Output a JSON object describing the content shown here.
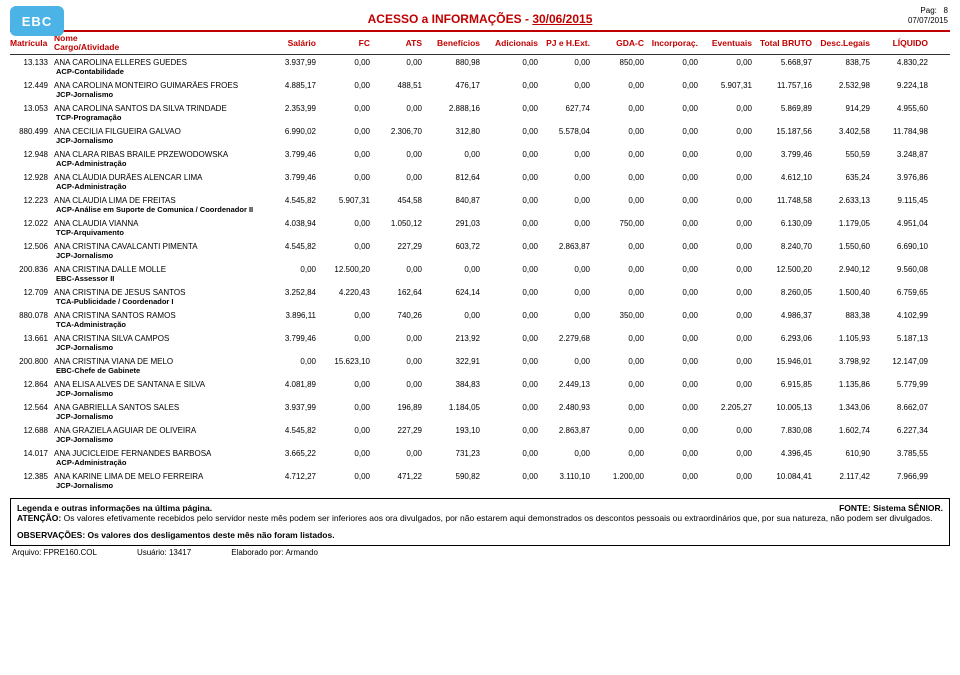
{
  "header": {
    "logo_text": "EBC",
    "title_prefix": "ACESSO a INFORMAÇÕES - ",
    "title_date": "30/06/2015",
    "pag_label": "Pag:",
    "pag_num": "8",
    "print_date": "07/07/2015"
  },
  "columns": {
    "matricula": "Matrícula",
    "nome_l1": "Nome",
    "nome_l2": "Cargo/Atividade",
    "salario": "Salário",
    "fc": "FC",
    "ats": "ATS",
    "beneficios": "Benefícios",
    "adicionais": "Adicionais",
    "pj": "PJ e H.Ext.",
    "gda": "GDA-C",
    "incorporac": "Incorporaç.",
    "eventuais": "Eventuais",
    "total_bruto": "Total BRUTO",
    "desc_legais": "Desc.Legais",
    "liquido": "LÍQUIDO"
  },
  "rows": [
    {
      "mat": "13.133",
      "nome": "ANA CAROLINA ELLERES GUEDES",
      "cargo": "ACP-Contabilidade",
      "v": [
        "3.937,99",
        "0,00",
        "0,00",
        "880,98",
        "0,00",
        "0,00",
        "850,00",
        "0,00",
        "0,00",
        "5.668,97",
        "838,75",
        "4.830,22"
      ]
    },
    {
      "mat": "12.449",
      "nome": "ANA CAROLINA MONTEIRO GUIMARÃES FROES",
      "cargo": "JCP-Jornalismo",
      "v": [
        "4.885,17",
        "0,00",
        "488,51",
        "476,17",
        "0,00",
        "0,00",
        "0,00",
        "0,00",
        "5.907,31",
        "11.757,16",
        "2.532,98",
        "9.224,18"
      ]
    },
    {
      "mat": "13.053",
      "nome": "ANA CAROLINA SANTOS DA SILVA TRINDADE",
      "cargo": "TCP-Programação",
      "v": [
        "2.353,99",
        "0,00",
        "0,00",
        "2.888,16",
        "0,00",
        "627,74",
        "0,00",
        "0,00",
        "0,00",
        "5.869,89",
        "914,29",
        "4.955,60"
      ]
    },
    {
      "mat": "880.499",
      "nome": "ANA CECILIA FILGUEIRA GALVAO",
      "cargo": "JCP-Jornalismo",
      "v": [
        "6.990,02",
        "0,00",
        "2.306,70",
        "312,80",
        "0,00",
        "5.578,04",
        "0,00",
        "0,00",
        "0,00",
        "15.187,56",
        "3.402,58",
        "11.784,98"
      ]
    },
    {
      "mat": "12.948",
      "nome": "ANA CLARA RIBAS BRAILE PRZEWODOWSKA",
      "cargo": "ACP-Administração",
      "v": [
        "3.799,46",
        "0,00",
        "0,00",
        "0,00",
        "0,00",
        "0,00",
        "0,00",
        "0,00",
        "0,00",
        "3.799,46",
        "550,59",
        "3.248,87"
      ]
    },
    {
      "mat": "12.928",
      "nome": "ANA CLÁUDIA DURÃES ALENCAR LIMA",
      "cargo": "ACP-Administração",
      "v": [
        "3.799,46",
        "0,00",
        "0,00",
        "812,64",
        "0,00",
        "0,00",
        "0,00",
        "0,00",
        "0,00",
        "4.612,10",
        "635,24",
        "3.976,86"
      ]
    },
    {
      "mat": "12.223",
      "nome": "ANA CLAUDIA LIMA DE FREITAS",
      "cargo": "ACP-Análise em Suporte de Comunica / Coordenador II",
      "v": [
        "4.545,82",
        "5.907,31",
        "454,58",
        "840,87",
        "0,00",
        "0,00",
        "0,00",
        "0,00",
        "0,00",
        "11.748,58",
        "2.633,13",
        "9.115,45"
      ]
    },
    {
      "mat": "12.022",
      "nome": "ANA CLAUDIA VIANNA",
      "cargo": "TCP-Arquivamento",
      "v": [
        "4.038,94",
        "0,00",
        "1.050,12",
        "291,03",
        "0,00",
        "0,00",
        "750,00",
        "0,00",
        "0,00",
        "6.130,09",
        "1.179,05",
        "4.951,04"
      ]
    },
    {
      "mat": "12.506",
      "nome": "ANA CRISTINA CAVALCANTI PIMENTA",
      "cargo": "JCP-Jornalismo",
      "v": [
        "4.545,82",
        "0,00",
        "227,29",
        "603,72",
        "0,00",
        "2.863,87",
        "0,00",
        "0,00",
        "0,00",
        "8.240,70",
        "1.550,60",
        "6.690,10"
      ]
    },
    {
      "mat": "200.836",
      "nome": "ANA CRISTINA DALLE MOLLE",
      "cargo": "EBC-Assessor II",
      "v": [
        "0,00",
        "12.500,20",
        "0,00",
        "0,00",
        "0,00",
        "0,00",
        "0,00",
        "0,00",
        "0,00",
        "12.500,20",
        "2.940,12",
        "9.560,08"
      ]
    },
    {
      "mat": "12.709",
      "nome": "ANA CRISTINA DE JESUS SANTOS",
      "cargo": "TCA-Publicidade / Coordenador I",
      "v": [
        "3.252,84",
        "4.220,43",
        "162,64",
        "624,14",
        "0,00",
        "0,00",
        "0,00",
        "0,00",
        "0,00",
        "8.260,05",
        "1.500,40",
        "6.759,65"
      ]
    },
    {
      "mat": "880.078",
      "nome": "ANA CRISTINA SANTOS RAMOS",
      "cargo": "TCA-Administração",
      "v": [
        "3.896,11",
        "0,00",
        "740,26",
        "0,00",
        "0,00",
        "0,00",
        "350,00",
        "0,00",
        "0,00",
        "4.986,37",
        "883,38",
        "4.102,99"
      ]
    },
    {
      "mat": "13.661",
      "nome": "ANA CRISTINA SILVA CAMPOS",
      "cargo": "JCP-Jornalismo",
      "v": [
        "3.799,46",
        "0,00",
        "0,00",
        "213,92",
        "0,00",
        "2.279,68",
        "0,00",
        "0,00",
        "0,00",
        "6.293,06",
        "1.105,93",
        "5.187,13"
      ]
    },
    {
      "mat": "200.800",
      "nome": "ANA CRISTINA VIANA DE MELO",
      "cargo": "EBC-Chefe de Gabinete",
      "v": [
        "0,00",
        "15.623,10",
        "0,00",
        "322,91",
        "0,00",
        "0,00",
        "0,00",
        "0,00",
        "0,00",
        "15.946,01",
        "3.798,92",
        "12.147,09"
      ]
    },
    {
      "mat": "12.864",
      "nome": "ANA ELISA ALVES DE SANTANA E SILVA",
      "cargo": "JCP-Jornalismo",
      "v": [
        "4.081,89",
        "0,00",
        "0,00",
        "384,83",
        "0,00",
        "2.449,13",
        "0,00",
        "0,00",
        "0,00",
        "6.915,85",
        "1.135,86",
        "5.779,99"
      ]
    },
    {
      "mat": "12.564",
      "nome": "ANA GABRIELLA SANTOS SALES",
      "cargo": "JCP-Jornalismo",
      "v": [
        "3.937,99",
        "0,00",
        "196,89",
        "1.184,05",
        "0,00",
        "2.480,93",
        "0,00",
        "0,00",
        "2.205,27",
        "10.005,13",
        "1.343,06",
        "8.662,07"
      ]
    },
    {
      "mat": "12.688",
      "nome": "ANA GRAZIELA AGUIAR DE OLIVEIRA",
      "cargo": "JCP-Jornalismo",
      "v": [
        "4.545,82",
        "0,00",
        "227,29",
        "193,10",
        "0,00",
        "2.863,87",
        "0,00",
        "0,00",
        "0,00",
        "7.830,08",
        "1.602,74",
        "6.227,34"
      ]
    },
    {
      "mat": "14.017",
      "nome": "ANA JUCICLEIDE FERNANDES BARBOSA",
      "cargo": "ACP-Administração",
      "v": [
        "3.665,22",
        "0,00",
        "0,00",
        "731,23",
        "0,00",
        "0,00",
        "0,00",
        "0,00",
        "0,00",
        "4.396,45",
        "610,90",
        "3.785,55"
      ]
    },
    {
      "mat": "12.385",
      "nome": "ANA KARINE LIMA DE MELO FERREIRA",
      "cargo": "JCP-Jornalismo",
      "v": [
        "4.712,27",
        "0,00",
        "471,22",
        "590,82",
        "0,00",
        "3.110,10",
        "1.200,00",
        "0,00",
        "0,00",
        "10.084,41",
        "2.117,42",
        "7.966,99"
      ]
    }
  ],
  "footer": {
    "legend": "Legenda e outras informações na última página.",
    "fonte": "FONTE: Sistema SÊNIOR.",
    "atencao_label": "ATENÇÃO:",
    "atencao_text": " Os valores efetivamente recebidos pelo servidor neste mês podem ser inferiores aos ora divulgados, por não estarem aqui demonstrados os descontos pessoais ou extraordinários que, por sua natureza, não podem ser divulgados.",
    "obs": "OBSERVAÇÕES: Os valores dos desligamentos deste mês não foram listados.",
    "arquivo_label": "Arquivo: ",
    "arquivo": "FPRE160.COL",
    "usuario_label": "Usuário: ",
    "usuario": "13417",
    "elab_label": "Elaborado por: ",
    "elab": "Armando"
  }
}
